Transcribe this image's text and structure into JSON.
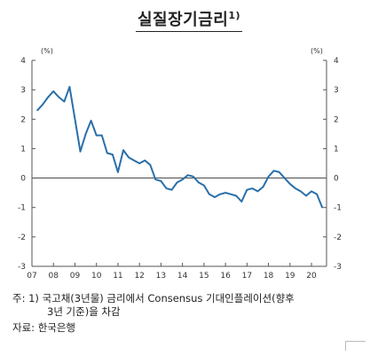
{
  "title": "실질장기금리",
  "title_sup": "1)",
  "chart_data": {
    "type": "line",
    "unit_left": "(%)",
    "unit_right": "(%)",
    "ylim": [
      -3,
      4
    ],
    "yticks": [
      4,
      3,
      2,
      1,
      0,
      -1,
      -2,
      -3
    ],
    "xlim": [
      2007,
      2020.7
    ],
    "xticks": [
      "07",
      "08",
      "09",
      "10",
      "11",
      "12",
      "13",
      "14",
      "15",
      "16",
      "17",
      "18",
      "19",
      "20"
    ],
    "grid": false,
    "zero_line": true,
    "color": "#2a6fa8",
    "series": [
      {
        "x": [
          2007.25,
          2007.5,
          2007.75,
          2008.0,
          2008.25,
          2008.5,
          2008.75,
          2009.0,
          2009.25,
          2009.5,
          2009.75,
          2010.0,
          2010.25,
          2010.5,
          2010.75,
          2011.0,
          2011.25,
          2011.5,
          2011.75,
          2012.0,
          2012.25,
          2012.5,
          2012.75,
          2013.0,
          2013.25,
          2013.5,
          2013.75,
          2014.0,
          2014.25,
          2014.5,
          2014.75,
          2015.0,
          2015.25,
          2015.5,
          2015.75,
          2016.0,
          2016.25,
          2016.5,
          2016.75,
          2017.0,
          2017.25,
          2017.5,
          2017.75,
          2018.0,
          2018.25,
          2018.5,
          2018.75,
          2019.0,
          2019.25,
          2019.5,
          2019.75,
          2020.0,
          2020.25,
          2020.5
        ],
        "values": [
          2.3,
          2.5,
          2.75,
          2.95,
          2.75,
          2.6,
          3.1,
          2.0,
          0.9,
          1.5,
          1.95,
          1.45,
          1.45,
          0.85,
          0.8,
          0.2,
          0.95,
          0.7,
          0.6,
          0.5,
          0.6,
          0.45,
          -0.05,
          -0.1,
          -0.35,
          -0.4,
          -0.15,
          -0.05,
          0.1,
          0.05,
          -0.15,
          -0.25,
          -0.55,
          -0.65,
          -0.55,
          -0.5,
          -0.55,
          -0.6,
          -0.8,
          -0.4,
          -0.35,
          -0.45,
          -0.3,
          0.05,
          0.25,
          0.2,
          0.0,
          -0.2,
          -0.35,
          -0.45,
          -0.6,
          -0.45,
          -0.55,
          -1.0
        ]
      }
    ]
  },
  "notes": {
    "line1": "주: 1) 국고채(3년물) 금리에서 Consensus 기대인플레이션(향후",
    "line2": "3년 기준)을 차감",
    "line3": "자료: 한국은행"
  }
}
